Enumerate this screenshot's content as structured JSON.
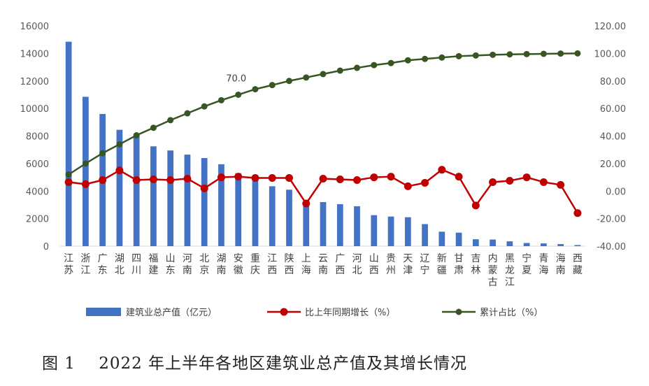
{
  "caption": "图 1    2022 年上半年各地区建筑业总产值及其增长情况",
  "chart_data": {
    "type": "bar+line",
    "categories": [
      "江苏",
      "浙江",
      "广东",
      "湖北",
      "四川",
      "福建",
      "山东",
      "河南",
      "北京",
      "湖南",
      "安徽",
      "重庆",
      "江西",
      "陕西",
      "上海",
      "云南",
      "广西",
      "河北",
      "山西",
      "贵州",
      "天津",
      "辽宁",
      "新疆",
      "甘肃",
      "吉林",
      "内蒙古",
      "黑龙江",
      "宁夏",
      "青海",
      "海南",
      "西藏"
    ],
    "left_axis": {
      "min": 0,
      "max": 16000,
      "step": 2000,
      "ticks": [
        "0",
        "2000",
        "4000",
        "6000",
        "8000",
        "10000",
        "12000",
        "14000",
        "16000"
      ]
    },
    "right_axis": {
      "min": -40,
      "max": 120,
      "step": 20,
      "ticks": [
        "-40.00",
        "-20.00",
        "0.00",
        "20.00",
        "40.00",
        "60.00",
        "80.00",
        "100.00",
        "120.00"
      ]
    },
    "series": [
      {
        "name": "建筑业总产值（亿元）",
        "type": "bar",
        "axis": "left",
        "color": "#4472c4",
        "values": [
          14850,
          10850,
          9600,
          8450,
          8000,
          7250,
          6950,
          6650,
          6400,
          5950,
          5300,
          5000,
          4350,
          4100,
          2900,
          3200,
          3050,
          2900,
          2250,
          2150,
          2100,
          1600,
          1050,
          980,
          500,
          480,
          350,
          230,
          200,
          150,
          80
        ]
      },
      {
        "name": "比上年同期增长（%）",
        "type": "line",
        "axis": "right",
        "color": "#c00000",
        "values": [
          6.5,
          5.0,
          8.0,
          15.0,
          8.0,
          8.5,
          8.0,
          9.0,
          2.0,
          10.0,
          10.5,
          9.5,
          9.5,
          9.5,
          -9.0,
          9.0,
          8.5,
          8.0,
          10.0,
          10.5,
          3.5,
          6.0,
          15.5,
          10.5,
          -10.5,
          6.5,
          7.5,
          10.0,
          6.5,
          4.5,
          -16.0
        ]
      },
      {
        "name": "累计占比（%）",
        "type": "line",
        "axis": "right",
        "color": "#375623",
        "values": [
          12.0,
          20.0,
          27.5,
          34.0,
          40.5,
          46.0,
          51.5,
          56.5,
          61.5,
          66.0,
          70.0,
          74.0,
          77.0,
          80.0,
          82.5,
          85.0,
          87.5,
          89.5,
          91.5,
          93.0,
          95.0,
          96.0,
          97.0,
          98.0,
          98.5,
          99.0,
          99.3,
          99.5,
          99.7,
          99.9,
          100.0
        ]
      }
    ],
    "annotation": {
      "text": "70.0",
      "category_index": 10,
      "series_index": 2
    },
    "legend_position": "bottom",
    "grid": false
  }
}
